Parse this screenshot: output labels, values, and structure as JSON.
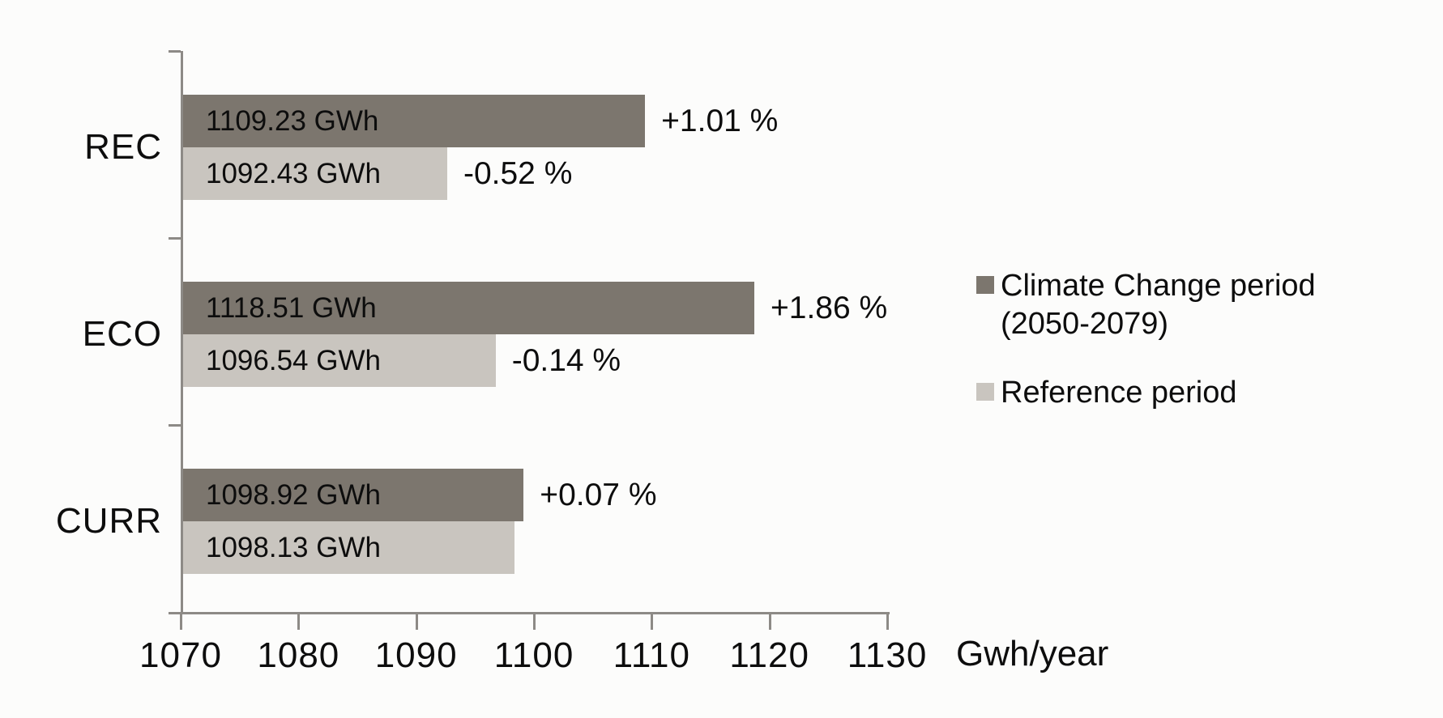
{
  "chart_data": {
    "type": "bar",
    "orientation": "horizontal",
    "title": "",
    "xlabel": "Gwh/year",
    "ylabel": "",
    "xlim": [
      1070,
      1130
    ],
    "xticks": [
      "1070",
      "1080",
      "1090",
      "1100",
      "1110",
      "1120",
      "1130"
    ],
    "grid": false,
    "legend_position": "right",
    "categories": [
      "REC",
      "ECO",
      "CURR"
    ],
    "series": [
      {
        "name": "Climate Change period (2050-2079)",
        "color": "#7c766e",
        "values": [
          1109.23,
          1118.51,
          1098.92
        ],
        "bar_labels": [
          "1109.23 GWh",
          "1118.51 GWh",
          "1098.92 GWh"
        ],
        "pct_labels": [
          "+1.01 %",
          "+1.86 %",
          "+0.07 %"
        ]
      },
      {
        "name": "Reference period",
        "color": "#c9c5bf",
        "values": [
          1092.43,
          1096.54,
          1098.13
        ],
        "bar_labels": [
          "1092.43 GWh",
          "1096.54 GWh",
          "1098.13 GWh"
        ],
        "pct_labels": [
          "-0.52 %",
          "-0.14 %",
          ""
        ]
      }
    ],
    "legend": [
      {
        "label": "Climate Change period (2050-2079)",
        "color": "#7c766e"
      },
      {
        "label": "Reference period",
        "color": "#c9c5bf"
      }
    ],
    "colors": {
      "axis": "#8d8a86",
      "text": "#0d0d0d",
      "background": "#fcfcfb"
    }
  }
}
